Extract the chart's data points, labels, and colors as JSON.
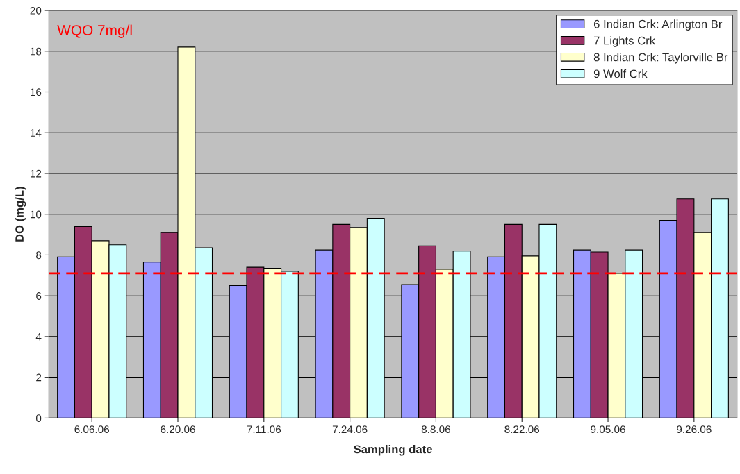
{
  "chart_data": {
    "type": "bar",
    "xlabel": "Sampling date",
    "ylabel": "DO (mg/L)",
    "categories": [
      "6.06.06",
      "6.20.06",
      "7.11.06",
      "7.24.06",
      "8.8.06",
      "8.22.06",
      "9.05.06",
      "9.26.06"
    ],
    "series": [
      {
        "name": "6 Indian Crk: Arlington Br",
        "color": "#9999ff",
        "values": [
          7.9,
          7.65,
          6.5,
          8.25,
          6.55,
          7.9,
          8.25,
          9.7
        ]
      },
      {
        "name": "7 Lights Crk",
        "color": "#993366",
        "values": [
          9.4,
          9.1,
          7.4,
          9.5,
          8.45,
          9.5,
          8.15,
          10.75
        ]
      },
      {
        "name": "8 Indian Crk: Taylorville Br",
        "color": "#ffffcc",
        "values": [
          8.7,
          18.2,
          7.35,
          9.35,
          7.3,
          7.95,
          7.1,
          9.1
        ]
      },
      {
        "name": "9 Wolf Crk",
        "color": "#ccffff",
        "values": [
          8.5,
          8.35,
          7.2,
          9.8,
          8.2,
          9.5,
          8.25,
          10.75
        ]
      }
    ],
    "ylim": [
      0,
      20
    ],
    "yticks": [
      0,
      2,
      4,
      6,
      8,
      10,
      12,
      14,
      16,
      18,
      20
    ],
    "ref_lines": [
      {
        "axis": "y",
        "value": 7.1,
        "label": "WQO 7mg/l",
        "color": "#ff0000",
        "line_style": "dashed"
      }
    ],
    "grid": "y",
    "legend": "top right"
  }
}
